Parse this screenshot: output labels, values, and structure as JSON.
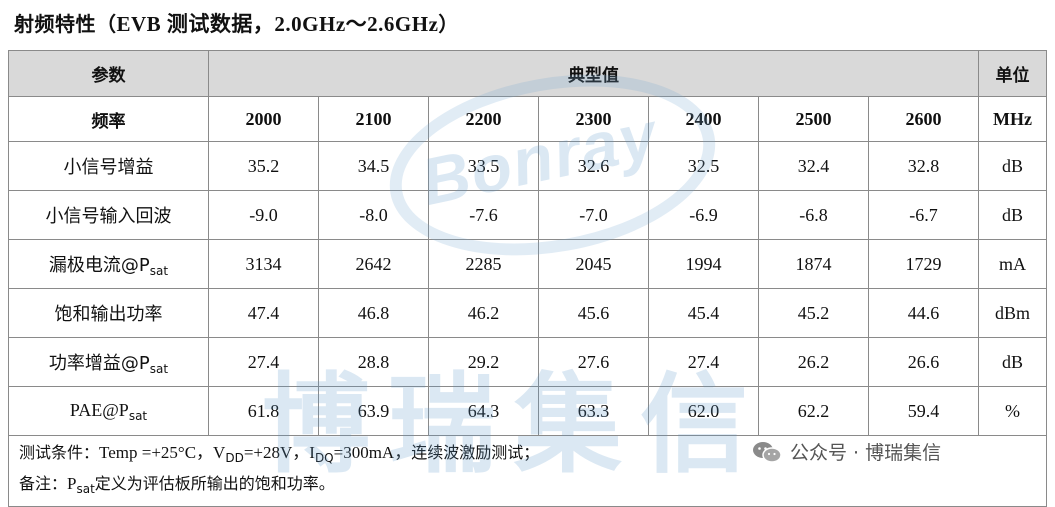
{
  "title": {
    "cn": "射频特性（",
    "latin": "EVB 测试数据，2.0GHz～2.6GHz",
    "close": "）"
  },
  "header": {
    "param": "参数",
    "typical": "典型值",
    "unit": "单位"
  },
  "freq_row": {
    "label": "频率",
    "values": [
      "2000",
      "2100",
      "2200",
      "2300",
      "2400",
      "2500",
      "2600"
    ],
    "unit": "MHz"
  },
  "rows": [
    {
      "param_main": "小信号增益",
      "param_sub": "",
      "values": [
        "35.2",
        "34.5",
        "33.5",
        "32.6",
        "32.5",
        "32.4",
        "32.8"
      ],
      "unit": "dB"
    },
    {
      "param_main": "小信号输入回波",
      "param_sub": "",
      "values": [
        "-9.0",
        "-8.0",
        "-7.6",
        "-7.0",
        "-6.9",
        "-6.8",
        "-6.7"
      ],
      "unit": "dB"
    },
    {
      "param_main": "漏极电流@P",
      "param_sub": "sat",
      "values": [
        "3134",
        "2642",
        "2285",
        "2045",
        "1994",
        "1874",
        "1729"
      ],
      "unit": "mA"
    },
    {
      "param_main": "饱和输出功率",
      "param_sub": "",
      "values": [
        "47.4",
        "46.8",
        "46.2",
        "45.6",
        "45.4",
        "45.2",
        "44.6"
      ],
      "unit": "dBm"
    },
    {
      "param_main": "功率增益@P",
      "param_sub": "sat",
      "values": [
        "27.4",
        "28.8",
        "29.2",
        "27.6",
        "27.4",
        "26.2",
        "26.6"
      ],
      "unit": "dB"
    },
    {
      "param_main": "PAE@P",
      "param_sub": "sat",
      "values": [
        "61.8",
        "63.9",
        "64.3",
        "63.3",
        "62.0",
        "62.2",
        "59.4"
      ],
      "unit": "%"
    }
  ],
  "notes": {
    "line1_prefix": "测试条件：",
    "line1_temp": "Temp =+25°C，V",
    "line1_vdd_sub": "DD",
    "line1_vdd": "=+28V，I",
    "line1_idq_sub": "DQ",
    "line1_idq": "=300mA，",
    "line1_suffix": "连续波激励测试；",
    "line2_prefix": "备注：",
    "line2_p": "P",
    "line2_sub": "sat",
    "line2_suffix": "定义为评估板所输出的饱和功率。"
  },
  "watermark": {
    "brand": "Bonray",
    "cn": "博瑞集信",
    "wechat": "公众号 · 博瑞集信"
  }
}
